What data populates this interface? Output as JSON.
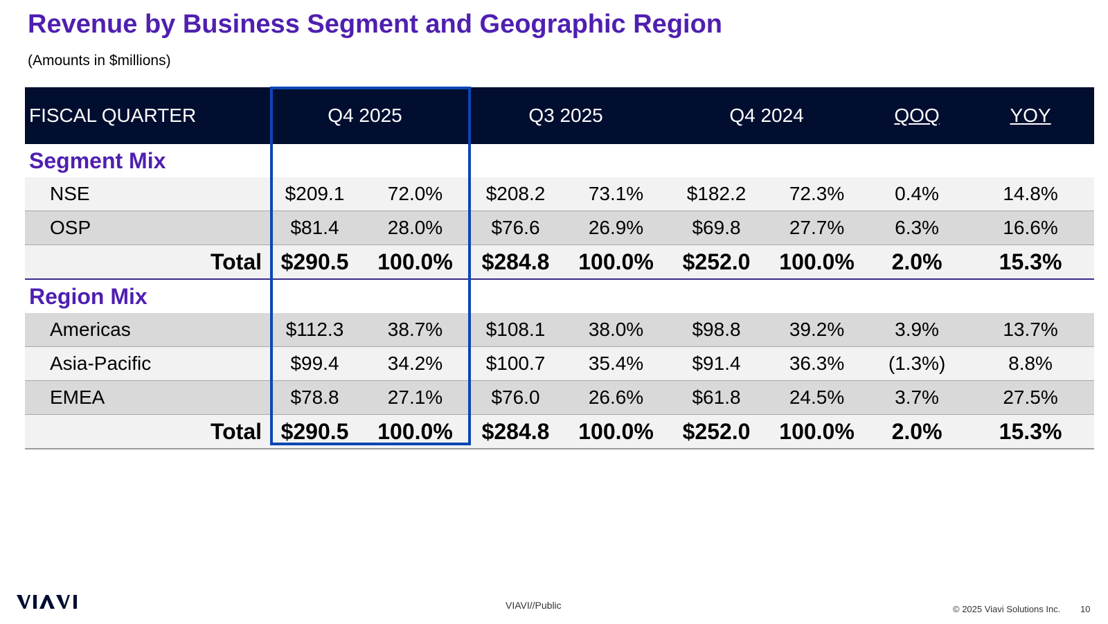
{
  "title": "Revenue by Business Segment and Geographic Region",
  "subtitle": "(Amounts in $millions)",
  "table": {
    "headers": [
      "FISCAL QUARTER",
      "Q4 2025",
      "Q3 2025",
      "Q4 2024",
      "QOQ",
      "YOY"
    ],
    "segment_section": "Segment Mix",
    "segment_rows": [
      {
        "label": "NSE",
        "cells": [
          "$209.1",
          "72.0%",
          "$208.2",
          "73.1%",
          "$182.2",
          "72.3%",
          "0.4%",
          "14.8%"
        ]
      },
      {
        "label": "OSP",
        "cells": [
          "$81.4",
          "28.0%",
          "$76.6",
          "26.9%",
          "$69.8",
          "27.7%",
          "6.3%",
          "16.6%"
        ]
      }
    ],
    "segment_total": {
      "label": "Total",
      "cells": [
        "$290.5",
        "100.0%",
        "$284.8",
        "100.0%",
        "$252.0",
        "100.0%",
        "2.0%",
        "15.3%"
      ]
    },
    "region_section": "Region Mix",
    "region_rows": [
      {
        "label": "Americas",
        "cells": [
          "$112.3",
          "38.7%",
          "$108.1",
          "38.0%",
          "$98.8",
          "39.2%",
          "3.9%",
          "13.7%"
        ]
      },
      {
        "label": "Asia-Pacific",
        "cells": [
          "$99.4",
          "34.2%",
          "$100.7",
          "35.4%",
          "$91.4",
          "36.3%",
          "(1.3%)",
          "8.8%"
        ]
      },
      {
        "label": "EMEA",
        "cells": [
          "$78.8",
          "27.1%",
          "$76.0",
          "26.6%",
          "$61.8",
          "24.5%",
          "3.7%",
          "27.5%"
        ]
      }
    ],
    "region_total": {
      "label": "Total",
      "cells": [
        "$290.5",
        "100.0%",
        "$284.8",
        "100.0%",
        "$252.0",
        "100.0%",
        "2.0%",
        "15.3%"
      ]
    }
  },
  "footer": {
    "logo": "VIAVI",
    "classification": "VIAVI//Public",
    "copyright": "© 2025 Viavi Solutions Inc.",
    "page": "10"
  },
  "colors": {
    "title": "#4f1fb0",
    "header_bg": "#010e30",
    "highlight": "#0a47b5",
    "row_light": "#f2f2f2",
    "row_dark": "#d9d9d9"
  }
}
